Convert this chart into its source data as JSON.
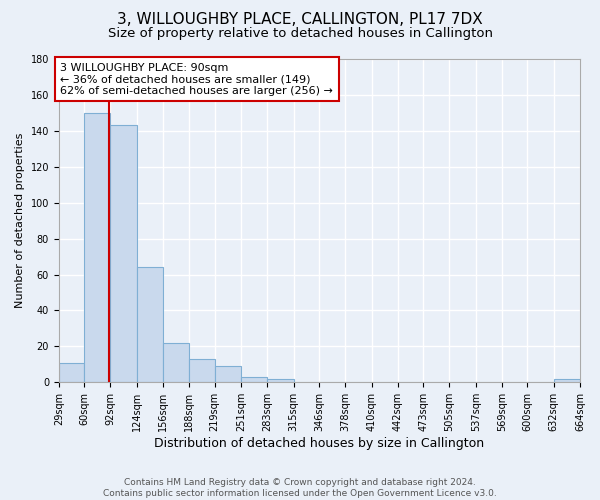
{
  "title": "3, WILLOUGHBY PLACE, CALLINGTON, PL17 7DX",
  "subtitle": "Size of property relative to detached houses in Callington",
  "xlabel": "Distribution of detached houses by size in Callington",
  "ylabel": "Number of detached properties",
  "footer_line1": "Contains HM Land Registry data © Crown copyright and database right 2024.",
  "footer_line2": "Contains public sector information licensed under the Open Government Licence v3.0.",
  "bin_edges": [
    29,
    60,
    92,
    124,
    156,
    188,
    219,
    251,
    283,
    315,
    346,
    378,
    410,
    442,
    473,
    505,
    537,
    569,
    600,
    632,
    664
  ],
  "bin_labels": [
    "29sqm",
    "60sqm",
    "92sqm",
    "124sqm",
    "156sqm",
    "188sqm",
    "219sqm",
    "251sqm",
    "283sqm",
    "315sqm",
    "346sqm",
    "378sqm",
    "410sqm",
    "442sqm",
    "473sqm",
    "505sqm",
    "537sqm",
    "569sqm",
    "600sqm",
    "632sqm",
    "664sqm"
  ],
  "counts": [
    11,
    150,
    143,
    64,
    22,
    13,
    9,
    3,
    2,
    0,
    0,
    0,
    0,
    0,
    0,
    0,
    0,
    0,
    0,
    2
  ],
  "bar_color": "#c9d9ed",
  "bar_edge_color": "#7fafd4",
  "property_line_x": 90,
  "annotation_text_line1": "3 WILLOUGHBY PLACE: 90sqm",
  "annotation_text_line2": "← 36% of detached houses are smaller (149)",
  "annotation_text_line3": "62% of semi-detached houses are larger (256) →",
  "ylim": [
    0,
    180
  ],
  "yticks": [
    0,
    20,
    40,
    60,
    80,
    100,
    120,
    140,
    160,
    180
  ],
  "background_color": "#eaf0f8",
  "plot_background_color": "#eaf0f8",
  "grid_color": "#ffffff",
  "red_line_color": "#cc0000",
  "annotation_box_edge_color": "#cc0000",
  "title_fontsize": 11,
  "subtitle_fontsize": 9.5,
  "xlabel_fontsize": 9,
  "ylabel_fontsize": 8,
  "annotation_fontsize": 8,
  "tick_fontsize": 7,
  "footer_fontsize": 6.5
}
